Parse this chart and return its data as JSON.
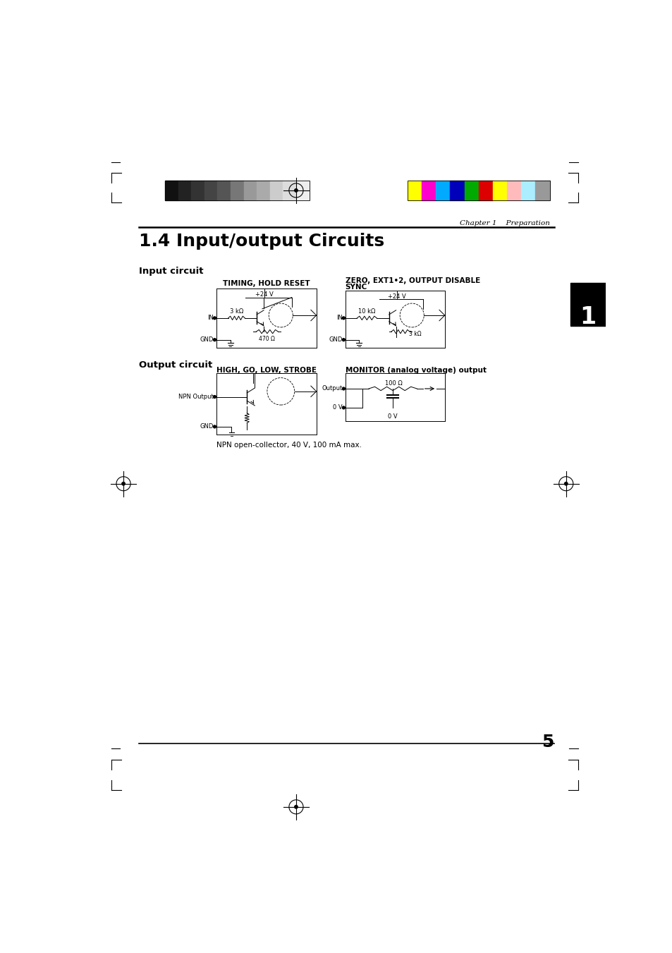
{
  "page_title": "1.4 Input/output Circuits",
  "chapter_label": "Chapter 1    Preparation",
  "section_input": "Input circuit",
  "section_output": "Output circuit",
  "circuit1_title": "TIMING, HOLD RESET",
  "circuit2_title": "ZERO, EXT1•2, OUTPUT DISABLE\nSYNC",
  "circuit3_title": "HIGH, GO, LOW, STROBE",
  "circuit4_title": "MONITOR (analog voltage) output",
  "npn_note": "NPN open-collector, 40 V, 100 mA max.",
  "page_number": "5",
  "tab_number": "1",
  "bg_color": "#ffffff",
  "gray_colors": [
    "#111111",
    "#222222",
    "#333333",
    "#444444",
    "#555555",
    "#777777",
    "#999999",
    "#aaaaaa",
    "#cccccc",
    "#dddddd",
    "#eeeeee"
  ],
  "color_bars": [
    "#ffff00",
    "#ff00cc",
    "#00aaff",
    "#0000bb",
    "#00aa00",
    "#dd0000",
    "#ffff00",
    "#ffbbbb",
    "#aaeeff",
    "#999999"
  ]
}
